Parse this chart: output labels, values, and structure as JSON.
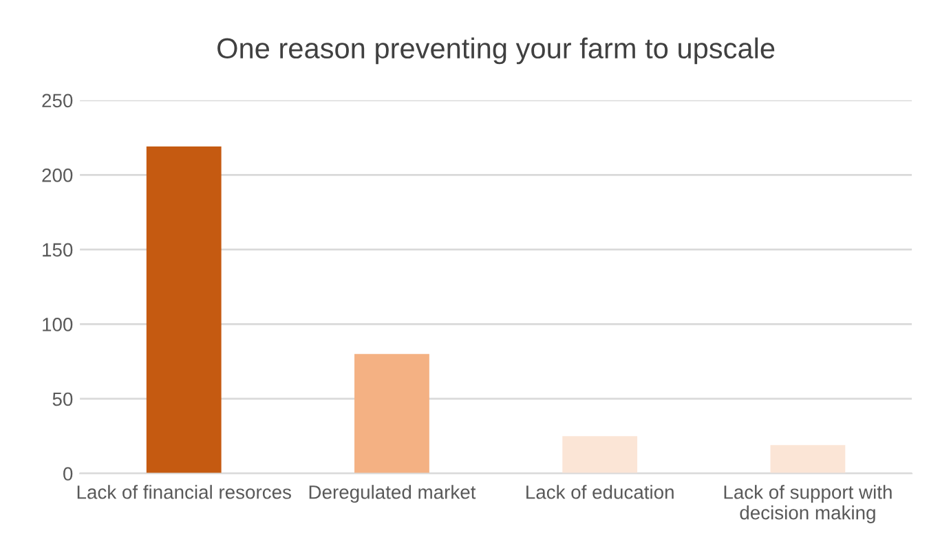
{
  "chart_data": {
    "type": "bar",
    "title": "One reason preventing your farm to upscale",
    "categories": [
      "Lack of financial resorces",
      "Deregulated market",
      "Lack of education",
      "Lack of support with decision making"
    ],
    "values": [
      219,
      80,
      25,
      19
    ],
    "colors": [
      "#c55a11",
      "#f4b183",
      "#fbe5d6",
      "#fbe5d6"
    ],
    "ylim": [
      0,
      250
    ],
    "yticks": [
      0,
      50,
      100,
      150,
      200,
      250
    ],
    "grid": "y",
    "legend": false
  }
}
